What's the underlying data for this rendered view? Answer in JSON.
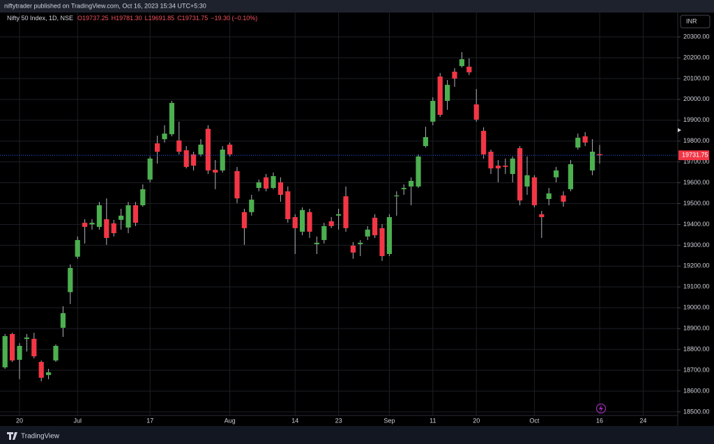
{
  "header": "niftytrader published on TradingView.com, Oct 16, 2023 15:34 UTC+5:30",
  "currency": "INR",
  "footer": "TradingView",
  "legend": {
    "symbol": "Nifty 50 Index, 1D, NSE",
    "open": "O19737.25",
    "high": "H19781.30",
    "low": "L19691.85",
    "close": "C19731.75",
    "change": "−19.30 (−0.10%)"
  },
  "chart_data": {
    "type": "candlestick",
    "up_color": "#4caf50",
    "down_color": "#f23645",
    "wick_color": "#b2b5be",
    "grid": true,
    "categories": [
      null,
      null,
      "20",
      null,
      null,
      null,
      null,
      null,
      null,
      null,
      "Jul",
      null,
      null,
      null,
      null,
      null,
      null,
      null,
      null,
      null,
      "17",
      null,
      null,
      null,
      null,
      null,
      null,
      null,
      null,
      null,
      null,
      "Aug",
      null,
      null,
      null,
      null,
      null,
      null,
      null,
      null,
      "14",
      null,
      null,
      null,
      null,
      null,
      "23",
      null,
      null,
      null,
      null,
      null,
      null,
      "Sep",
      null,
      null,
      null,
      null,
      null,
      "11",
      null,
      null,
      null,
      null,
      null,
      "20",
      null,
      null,
      null,
      null,
      null,
      null,
      null,
      "Oct",
      null,
      null,
      null,
      null,
      null,
      null,
      null,
      null,
      "16",
      null,
      null,
      null,
      null,
      null,
      "24",
      null,
      null,
      null,
      null
    ],
    "open": [
      18714,
      18874,
      18750,
      18850,
      18851,
      18740,
      18677,
      18747,
      18904,
      19075,
      19245,
      19408,
      19400,
      19388,
      19425,
      19405,
      19422,
      19385,
      19492,
      19492,
      19615,
      19789,
      19809,
      19833,
      19803,
      19756,
      19736,
      19736,
      19859,
      19662,
      19659,
      19783,
      19656,
      19459,
      19459,
      19575,
      19626,
      19575,
      19602,
      19559,
      19435,
      19365,
      19459,
      19305,
      19325,
      19415,
      19442,
      19535,
      19298,
      19305,
      19342,
      19432,
      19382,
      19258,
      19535,
      19569,
      19582,
      19582,
      19776,
      19893,
      20110,
      19993,
      20133,
      20160,
      20157,
      19976,
      19849,
      19749,
      19682,
      19682,
      19642,
      19766,
      19582,
      19626,
      19449,
      19522,
      19626,
      19539,
      19569,
      19769,
      19823,
      19659,
      19737.25,
      null,
      null,
      null,
      null,
      null,
      null,
      null,
      null,
      null,
      null
    ],
    "high": [
      18874,
      18880,
      18830,
      18874,
      18880,
      18747,
      18707,
      18824,
      19007,
      19208,
      19342,
      19425,
      19425,
      19508,
      19525,
      19422,
      19475,
      19508,
      19508,
      19592,
      19726,
      19826,
      19876,
      19993,
      19893,
      19776,
      19749,
      19809,
      19876,
      19709,
      19776,
      19793,
      19676,
      19475,
      19542,
      19615,
      19642,
      19649,
      19626,
      19582,
      19449,
      19482,
      19475,
      19342,
      19408,
      19435,
      19475,
      19582,
      19315,
      19325,
      19392,
      19449,
      19402,
      19449,
      19559,
      19592,
      19626,
      19736,
      19869,
      20010,
      20127,
      20093,
      20150,
      20227,
      20197,
      20050,
      19866,
      19759,
      19709,
      19716,
      19726,
      19776,
      19726,
      19636,
      19465,
      19575,
      19676,
      19559,
      19709,
      19836,
      19843,
      19809,
      19781.3,
      null,
      null,
      null,
      null,
      null,
      null,
      null,
      null,
      null,
      null
    ],
    "low": [
      18707,
      18740,
      18657,
      18790,
      18757,
      18647,
      18657,
      18740,
      18860,
      19018,
      19235,
      19308,
      19375,
      19375,
      19302,
      19342,
      19375,
      19358,
      19392,
      19485,
      19602,
      19692,
      19793,
      19823,
      19736,
      19669,
      19659,
      19726,
      19642,
      19569,
      19649,
      19726,
      19502,
      19302,
      19442,
      19559,
      19559,
      19569,
      19509,
      19408,
      19258,
      19348,
      19335,
      19258,
      19308,
      19382,
      19375,
      19365,
      19235,
      19248,
      19325,
      19335,
      19225,
      19248,
      19442,
      19542,
      19492,
      19575,
      19769,
      19876,
      19916,
      19950,
      20060,
      20153,
      20117,
      19893,
      19716,
      19642,
      19602,
      19642,
      19602,
      19492,
      19542,
      19482,
      19335,
      19492,
      19602,
      19485,
      19559,
      19759,
      19776,
      19636,
      19691.85,
      null,
      null,
      null,
      null,
      null,
      null,
      null,
      null,
      null,
      null
    ],
    "close": [
      18864,
      18747,
      18817,
      18857,
      18767,
      18664,
      18690,
      18817,
      18974,
      19191,
      19325,
      19388,
      19408,
      19492,
      19335,
      19358,
      19442,
      19492,
      19408,
      19569,
      19716,
      19749,
      19836,
      19983,
      19749,
      19676,
      19682,
      19783,
      19659,
      19649,
      19759,
      19736,
      19525,
      19382,
      19519,
      19602,
      19572,
      19632,
      19542,
      19425,
      19382,
      19469,
      19365,
      19312,
      19392,
      19392,
      19449,
      19382,
      19265,
      19312,
      19375,
      19348,
      19248,
      19435,
      19539,
      19575,
      19609,
      19726,
      19819,
      19993,
      19926,
      20070,
      20100,
      20193,
      20130,
      19903,
      19736,
      19669,
      19669,
      19676,
      19716,
      19515,
      19636,
      19492,
      19435,
      19549,
      19659,
      19509,
      19689,
      19816,
      19793,
      19749,
      19731.75,
      null,
      null,
      null,
      null,
      null,
      null,
      null,
      null,
      null,
      null
    ],
    "ylim": [
      18483,
      20417
    ],
    "yticks": [
      {
        "value": 18500,
        "label": "18500.00"
      },
      {
        "value": 18600,
        "label": "18600.00"
      },
      {
        "value": 18700,
        "label": "18700.00"
      },
      {
        "value": 18800,
        "label": "18800.00"
      },
      {
        "value": 18900,
        "label": "18900.00"
      },
      {
        "value": 19000,
        "label": "19000.00"
      },
      {
        "value": 19100,
        "label": "19100.00"
      },
      {
        "value": 19200,
        "label": "19200.00"
      },
      {
        "value": 19300,
        "label": "19300.00"
      },
      {
        "value": 19400,
        "label": "19400.00"
      },
      {
        "value": 19500,
        "label": "19500.00"
      },
      {
        "value": 19600,
        "label": "19600.00"
      },
      {
        "value": 19700,
        "label": "19700.00"
      },
      {
        "value": 19800,
        "label": "19800.00"
      },
      {
        "value": 19900,
        "label": "19900.00"
      },
      {
        "value": 20000,
        "label": "20000.00"
      },
      {
        "value": 20100,
        "label": "20100.00"
      },
      {
        "value": 20200,
        "label": "20200.00"
      },
      {
        "value": 20300,
        "label": "20300.00"
      }
    ]
  }
}
